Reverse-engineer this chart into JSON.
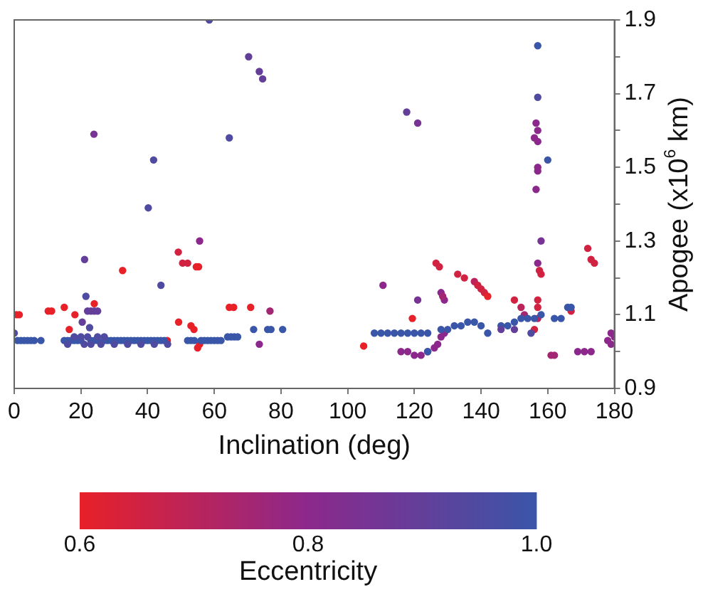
{
  "chart_data": {
    "type": "scatter",
    "xlabel": "Inclination (deg)",
    "ylabel": "Apogee (x10$^{6}$ km)",
    "clabel": "Eccentricity",
    "marker": "circle",
    "grid": false,
    "legend": false,
    "xlim": [
      0,
      180
    ],
    "xticks": [
      0,
      20,
      40,
      60,
      80,
      100,
      120,
      140,
      160,
      180
    ],
    "ylim": [
      0.9,
      1.9
    ],
    "yticks": [
      0.9,
      {
        "value": 1.0,
        "label": null
      },
      1.1,
      {
        "value": 1.2,
        "label": null
      },
      1.3,
      {
        "value": 1.4,
        "label": null
      },
      1.5,
      {
        "value": 1.6,
        "label": null
      },
      1.7,
      {
        "value": 1.8,
        "label": null
      },
      1.9
    ],
    "clim": [
      0.6,
      1.0
    ],
    "cticks": [
      0.6,
      0.8,
      {
        "value": 1.0,
        "label": "1.0"
      }
    ],
    "x": [
      58.5,
      70.3,
      73.5,
      74.5,
      23.9,
      64.5,
      41.8,
      40.2,
      55.6,
      49.2,
      50.5,
      52,
      54.6,
      55.3,
      32.5,
      21.1,
      44,
      21.5,
      24,
      0.7,
      1.5,
      10.2,
      11.2,
      15,
      18.2,
      22,
      23,
      24,
      25,
      22.6,
      20.4,
      16.5,
      64.5,
      65.8,
      70.9,
      76.7,
      49.3,
      53,
      53.9,
      71.8,
      76,
      77,
      80.5,
      73.5,
      55,
      55.6,
      45.9,
      0,
      1,
      2,
      3,
      4,
      5,
      6,
      8,
      15,
      16,
      17,
      18,
      19,
      20,
      23,
      24,
      25,
      27,
      28,
      29,
      30,
      31,
      32,
      33,
      34,
      35,
      36,
      37,
      38,
      39,
      40,
      41,
      42,
      43,
      44,
      45,
      16,
      21,
      23,
      26,
      30,
      34,
      38,
      42,
      46,
      18,
      20,
      22,
      25,
      27,
      52,
      53,
      54,
      56,
      57,
      58,
      59,
      60,
      61,
      62,
      64,
      65,
      66,
      67,
      157,
      157,
      156.5,
      157,
      156,
      157,
      160,
      157,
      157,
      156.5,
      158,
      157,
      158,
      157.5,
      157,
      157,
      157,
      156,
      117.7,
      121,
      110.6,
      104.8,
      121,
      119.4,
      126.5,
      127.5,
      128,
      129,
      128.5,
      133,
      135,
      138,
      139,
      140,
      141,
      142,
      150,
      152,
      153,
      172,
      173,
      174,
      167,
      161,
      162,
      169,
      171,
      173,
      178,
      179,
      180,
      179,
      116,
      118,
      120,
      122,
      124,
      126,
      127,
      128,
      129,
      108,
      110,
      112,
      114,
      116,
      118,
      120,
      122,
      124,
      128,
      130,
      132,
      134,
      136,
      138,
      140,
      142,
      146,
      148,
      150,
      152,
      154,
      156,
      158,
      162,
      164,
      166,
      167,
      146,
      150,
      155,
      124
    ],
    "values": [
      1.9,
      1.8,
      1.76,
      1.74,
      1.59,
      1.58,
      1.52,
      1.39,
      1.3,
      1.27,
      1.24,
      1.24,
      1.23,
      1.23,
      1.22,
      1.25,
      1.18,
      1.15,
      1.13,
      1.1,
      1.1,
      1.11,
      1.11,
      1.12,
      1.1,
      1.11,
      1.11,
      1.11,
      1.11,
      1.065,
      1.08,
      1.06,
      1.12,
      1.12,
      1.12,
      1.11,
      1.08,
      1.07,
      1.06,
      1.06,
      1.06,
      1.06,
      1.06,
      1.02,
      1.01,
      1.02,
      1.03,
      1.05,
      1.03,
      1.03,
      1.03,
      1.03,
      1.03,
      1.03,
      1.03,
      1.03,
      1.03,
      1.03,
      1.03,
      1.03,
      1.03,
      1.03,
      1.03,
      1.03,
      1.03,
      1.03,
      1.03,
      1.03,
      1.03,
      1.03,
      1.03,
      1.03,
      1.03,
      1.03,
      1.03,
      1.03,
      1.03,
      1.03,
      1.03,
      1.03,
      1.03,
      1.03,
      1.03,
      1.02,
      1.02,
      1.02,
      1.02,
      1.02,
      1.02,
      1.02,
      1.02,
      1.02,
      1.04,
      1.04,
      1.04,
      1.04,
      1.04,
      1.03,
      1.03,
      1.03,
      1.03,
      1.03,
      1.03,
      1.03,
      1.03,
      1.03,
      1.03,
      1.04,
      1.04,
      1.04,
      1.04,
      1.83,
      1.69,
      1.62,
      1.6,
      1.58,
      1.57,
      1.52,
      1.5,
      1.49,
      1.44,
      1.3,
      1.24,
      1.21,
      1.22,
      1.14,
      1.12,
      1.09,
      1.06,
      1.65,
      1.62,
      1.18,
      1.015,
      1.14,
      1.09,
      1.24,
      1.23,
      1.16,
      1.14,
      1.15,
      1.21,
      1.2,
      1.19,
      1.18,
      1.17,
      1.16,
      1.15,
      1.14,
      1.12,
      1.1,
      1.28,
      1.25,
      1.24,
      1.11,
      0.99,
      0.99,
      1.0,
      1.0,
      1.0,
      1.03,
      1.05,
      1.04,
      1.02,
      1.0,
      1.0,
      0.99,
      0.99,
      1.0,
      1.01,
      1.02,
      1.04,
      1.05,
      1.05,
      1.05,
      1.05,
      1.05,
      1.05,
      1.05,
      1.05,
      1.05,
      1.05,
      1.06,
      1.06,
      1.07,
      1.07,
      1.08,
      1.08,
      1.07,
      1.05,
      1.07,
      1.07,
      1.08,
      1.09,
      1.09,
      1.09,
      1.1,
      1.09,
      1.09,
      1.12,
      1.12,
      1.06,
      1.06,
      1.05,
      1.0
    ],
    "cvalues": [
      0.95,
      0.9,
      0.9,
      0.9,
      0.85,
      0.95,
      0.95,
      0.95,
      0.8,
      0.65,
      0.65,
      0.65,
      0.6,
      0.6,
      0.6,
      0.9,
      0.95,
      0.95,
      0.6,
      0.6,
      0.6,
      0.6,
      0.6,
      0.6,
      0.6,
      0.9,
      0.9,
      0.9,
      0.9,
      0.95,
      0.9,
      0.6,
      0.6,
      0.6,
      0.6,
      0.75,
      0.6,
      0.6,
      0.6,
      1.0,
      1.0,
      1.0,
      1.0,
      0.8,
      0.6,
      0.6,
      0.6,
      0.95,
      1.0,
      1.0,
      1.0,
      1.0,
      1.0,
      1.0,
      1.0,
      1.0,
      1.0,
      1.0,
      1.0,
      1.0,
      1.0,
      1.0,
      1.0,
      1.0,
      1.0,
      1.0,
      1.0,
      1.0,
      1.0,
      1.0,
      1.0,
      1.0,
      1.0,
      1.0,
      1.0,
      1.0,
      1.0,
      1.0,
      1.0,
      1.0,
      1.0,
      1.0,
      1.0,
      0.95,
      0.95,
      0.95,
      0.95,
      0.95,
      0.95,
      0.95,
      0.95,
      0.95,
      0.95,
      0.95,
      0.95,
      0.95,
      0.95,
      1.0,
      1.0,
      1.0,
      1.0,
      1.0,
      1.0,
      1.0,
      1.0,
      1.0,
      1.0,
      1.0,
      1.0,
      1.0,
      1.0,
      1.0,
      0.95,
      0.8,
      0.8,
      0.8,
      0.8,
      1.0,
      0.8,
      0.8,
      0.8,
      0.85,
      0.8,
      0.65,
      0.65,
      0.65,
      0.65,
      0.7,
      0.65,
      0.9,
      0.85,
      0.8,
      0.6,
      0.85,
      0.6,
      0.65,
      0.65,
      0.8,
      0.8,
      0.75,
      0.65,
      0.65,
      0.7,
      0.65,
      0.65,
      0.65,
      0.6,
      0.65,
      0.7,
      0.75,
      0.65,
      0.65,
      0.65,
      0.65,
      0.75,
      0.75,
      0.8,
      0.8,
      0.8,
      0.8,
      0.8,
      0.8,
      0.8,
      0.8,
      0.8,
      0.8,
      0.8,
      0.8,
      0.8,
      0.8,
      0.8,
      0.8,
      1.0,
      1.0,
      1.0,
      1.0,
      1.0,
      1.0,
      1.0,
      1.0,
      1.0,
      1.0,
      1.0,
      1.0,
      1.0,
      1.0,
      1.0,
      1.0,
      1.0,
      1.0,
      1.0,
      1.0,
      1.0,
      1.0,
      1.0,
      1.0,
      1.0,
      1.0,
      1.0,
      1.0,
      0.9,
      0.9,
      0.95,
      1.0
    ]
  }
}
